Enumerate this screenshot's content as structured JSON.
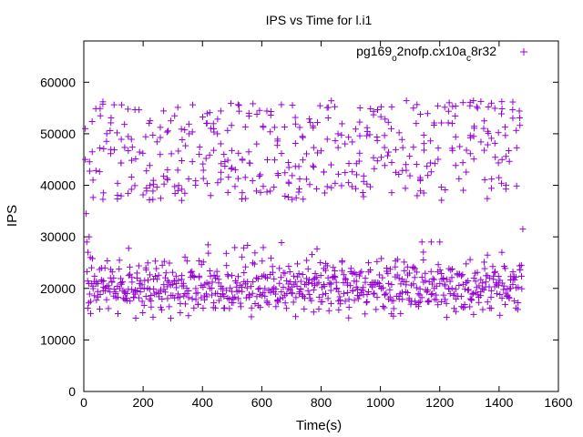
{
  "chart_data": {
    "type": "scatter",
    "title": "IPS vs Time for l.i1",
    "xlabel": "Time(s)",
    "ylabel": "IPS",
    "xlim": [
      0,
      1600
    ],
    "ylim": [
      0,
      68000
    ],
    "xticks": [
      0,
      200,
      400,
      600,
      800,
      1000,
      1200,
      1400,
      1600
    ],
    "yticks": [
      0,
      10000,
      20000,
      30000,
      40000,
      50000,
      60000
    ],
    "grid": false,
    "legend_position": "top-right",
    "series": [
      {
        "name": "pg169_o2nofp.cx10a_c8r32",
        "legend_parts": [
          "pg169",
          "o",
          "2nofp.cx10a",
          "c",
          "8r32"
        ],
        "marker": "+",
        "color": "#9400d3",
        "x_range": [
          0,
          1480
        ],
        "sample_interval_s": 6,
        "lower_band": {
          "center": 19500,
          "spread": 5500,
          "min": 13500,
          "max": 31500
        },
        "upper_band": {
          "min": 35500,
          "max": 57000,
          "columns_every_s": 24
        },
        "initial_transient": [
          {
            "x": 5,
            "y": 51000
          },
          {
            "x": 5,
            "y": 45000
          },
          {
            "x": 8,
            "y": 34500
          },
          {
            "x": 10,
            "y": 29000
          },
          {
            "x": 14,
            "y": 27000
          },
          {
            "x": 18,
            "y": 30000
          },
          {
            "x": 22,
            "y": 26000
          },
          {
            "x": 26,
            "y": 24000
          },
          {
            "x": 1480,
            "y": 31500
          }
        ]
      }
    ]
  }
}
